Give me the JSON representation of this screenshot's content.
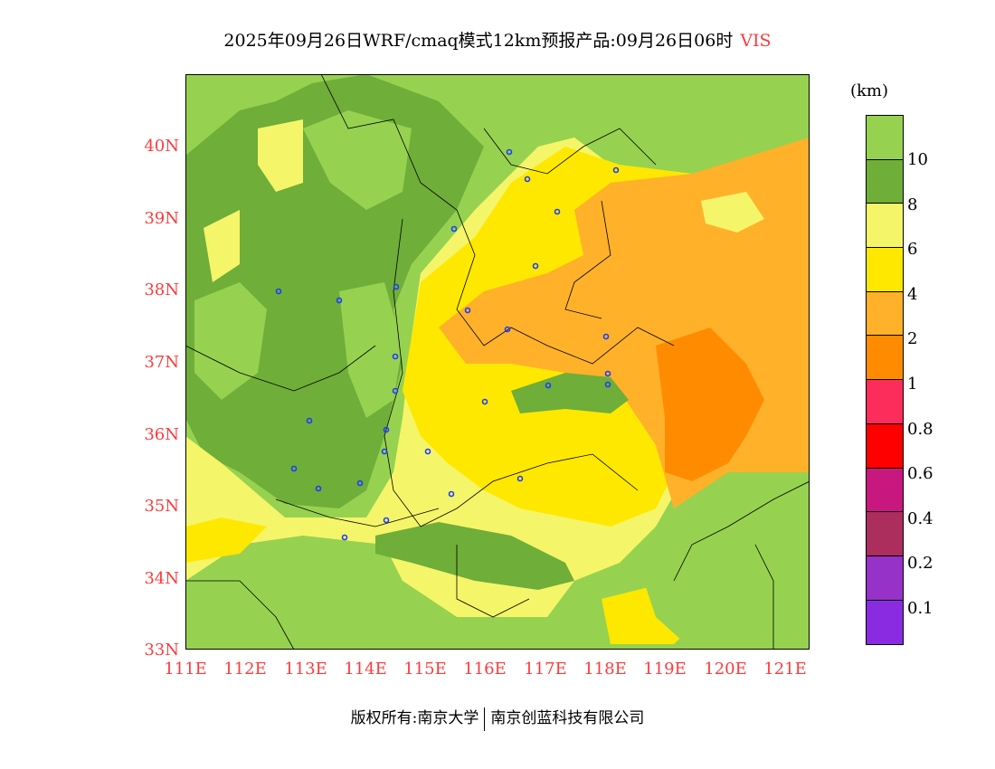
{
  "title": {
    "text": "2025年09月26日WRF/cmaq模式12km预报产品:09月26日06时",
    "variable": "VIS"
  },
  "colorbar": {
    "unit": "(km)",
    "colors": [
      "#96d250",
      "#6fae38",
      "#f5f56a",
      "#ffe800",
      "#ffb12a",
      "#ff8c00",
      "#fc2d5a",
      "#ff0000",
      "#c8177f",
      "#ab2e5c",
      "#9632c8",
      "#8a2be2"
    ],
    "labels": [
      "10",
      "8",
      "6",
      "4",
      "2",
      "1",
      "0.8",
      "0.6",
      "0.4",
      "0.2",
      "0.1"
    ]
  },
  "axes": {
    "lat_labels": [
      "40N",
      "39N",
      "38N",
      "37N",
      "36N",
      "35N",
      "34N",
      "33N"
    ],
    "lon_labels": [
      "111E",
      "112E",
      "113E",
      "114E",
      "115E",
      "116E",
      "117E",
      "118E",
      "119E",
      "120E",
      "121E"
    ]
  },
  "footer": {
    "left": "版权所有:南京大学",
    "right": "南京创蓝科技有限公司"
  }
}
